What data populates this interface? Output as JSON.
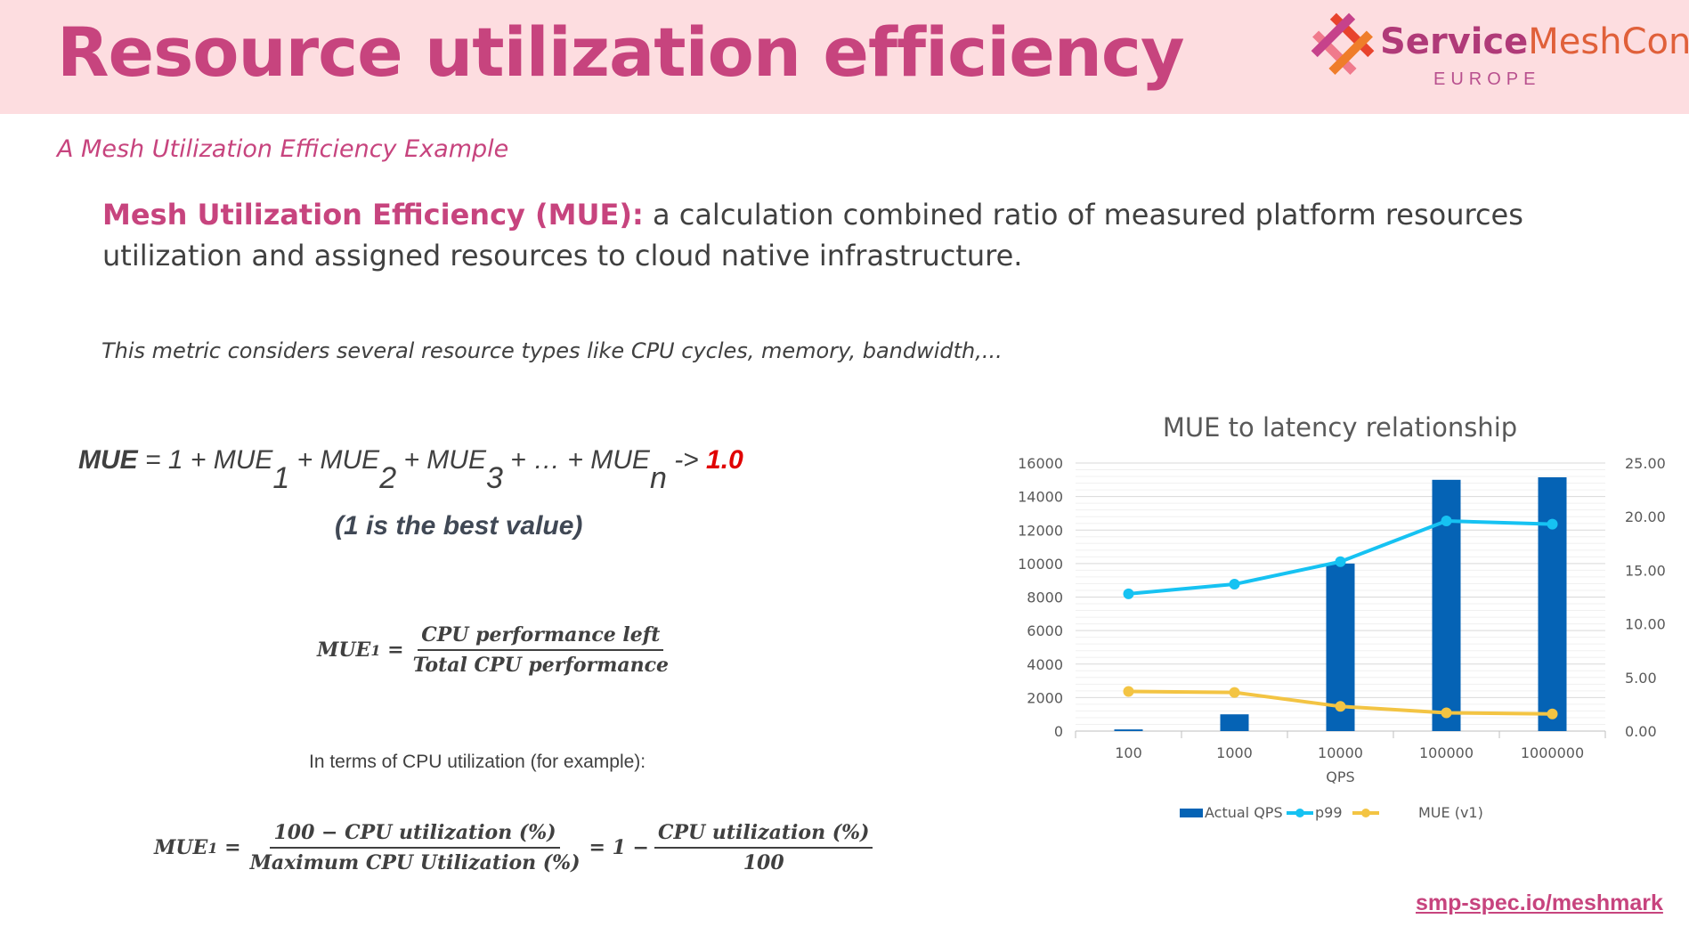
{
  "header": {
    "title": "Resource utilization efficiency",
    "logo": {
      "name_bold": "Service",
      "name_light": "MeshCon",
      "region": "EUROPE"
    }
  },
  "subtitle": "A Mesh Utilization Efficiency Example",
  "definition": {
    "term": "Mesh Utilization Efficiency (MUE):",
    "text": " a calculation combined ratio of measured platform resources utilization and assigned resources to cloud native infrastructure."
  },
  "note": "This metric considers several resource types like CPU cycles, memory, bandwidth,...",
  "equation": {
    "lhs": "MUE",
    "p1": " = 1 + MUE",
    "s1": "1",
    "p2": " + MUE",
    "s2": "2",
    "p3": " + MUE",
    "s3": "3",
    "p4": " + … + MUE",
    "sn": "n",
    "arrow": " -> ",
    "target": "1.0",
    "best": "(1 is the best value)"
  },
  "formula1": {
    "lhs": "MUE",
    "sub": "1",
    "eq": "=",
    "num": "CPU performance left",
    "den": "Total CPU performance"
  },
  "terms_label": "In terms of CPU utilization (for example):",
  "formula2": {
    "lhs": "MUE",
    "sub": "1",
    "eq": "=",
    "num": "100 − CPU utilization (%)",
    "den": "Maximum CPU Utilization (%)",
    "eq2": "= 1 −",
    "num2": "CPU utilization (%)",
    "den2": "100"
  },
  "link": "smp-spec.io/meshmark",
  "chart_data": {
    "type": "bar+line",
    "title": "MUE to latency relationship",
    "xlabel": "QPS",
    "categories": [
      "100",
      "1000",
      "10000",
      "100000",
      "1000000"
    ],
    "y_left": {
      "range": [
        0,
        16000
      ],
      "ticks": [
        "0",
        "2000",
        "4000",
        "6000",
        "8000",
        "10000",
        "12000",
        "14000",
        "16000"
      ]
    },
    "y_right": {
      "range": [
        0,
        25
      ],
      "ticks": [
        "0.00",
        "5.00",
        "10.00",
        "15.00",
        "20.00",
        "25.00"
      ]
    },
    "series": [
      {
        "name": "Actual QPS",
        "type": "bar",
        "axis": "left",
        "color": "#0563b5",
        "values": [
          100,
          1000,
          10000,
          15000,
          15150
        ]
      },
      {
        "name": "p99",
        "type": "line",
        "axis": "right",
        "color": "#16c2f2",
        "values": [
          12.8,
          13.7,
          15.8,
          19.6,
          19.3
        ]
      },
      {
        "name": "MUE (v1)",
        "type": "line",
        "axis": "right",
        "color": "#f3c443",
        "values": [
          3.7,
          3.6,
          2.3,
          1.7,
          1.6
        ]
      }
    ],
    "grid": true,
    "legend": "bottom"
  }
}
